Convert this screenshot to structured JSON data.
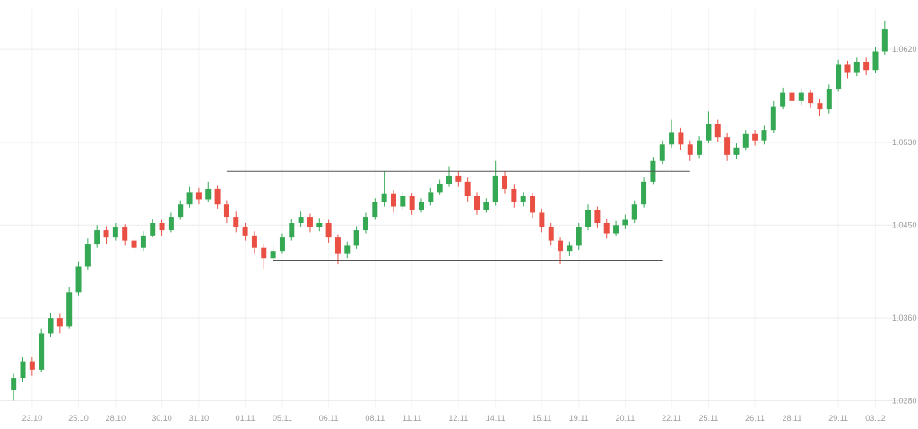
{
  "chart_data": {
    "type": "candlestick",
    "title": "",
    "xlabel": "",
    "ylabel": "",
    "grid": true,
    "ylim": [
      1.027,
      1.066
    ],
    "colors": {
      "background": "#ffffff",
      "up": "#34a853",
      "down": "#ea4f44",
      "grid_horizontal": "#ececec",
      "grid_vertical": "#f4f4f4",
      "axis_text": "#9b9b9b",
      "range_line": "#555555"
    },
    "y_axis": {
      "side": "right",
      "labels": [
        {
          "text": "1.0620",
          "price": 1.062
        },
        {
          "text": "1.0530",
          "price": 1.053
        },
        {
          "text": "1.0450",
          "price": 1.045
        },
        {
          "text": "1.0360",
          "price": 1.036
        },
        {
          "text": "1.0280",
          "price": 1.028
        }
      ]
    },
    "x_axis": {
      "labels": [
        {
          "text": "23.10",
          "index": 2
        },
        {
          "text": "25.10",
          "index": 7
        },
        {
          "text": "28.10",
          "index": 11
        },
        {
          "text": "30.10",
          "index": 16
        },
        {
          "text": "31.10",
          "index": 20
        },
        {
          "text": "01.11",
          "index": 25
        },
        {
          "text": "05.11",
          "index": 29
        },
        {
          "text": "06.11",
          "index": 34
        },
        {
          "text": "08.11",
          "index": 39
        },
        {
          "text": "11.11",
          "index": 43
        },
        {
          "text": "12.11",
          "index": 48
        },
        {
          "text": "14.11",
          "index": 52
        },
        {
          "text": "15.11",
          "index": 57
        },
        {
          "text": "19.11",
          "index": 61
        },
        {
          "text": "20.11",
          "index": 66
        },
        {
          "text": "22.11",
          "index": 71
        },
        {
          "text": "25.11",
          "index": 75
        },
        {
          "text": "26.11",
          "index": 80
        },
        {
          "text": "28.11",
          "index": 84
        },
        {
          "text": "29.11",
          "index": 89
        },
        {
          "text": "03.12",
          "index": 93
        }
      ]
    },
    "range_lines": [
      {
        "name": "resistance-line",
        "price": 1.0502,
        "from_index": 23,
        "to_index": 73
      },
      {
        "name": "support-line",
        "price": 1.0416,
        "from_index": 28,
        "to_index": 70
      }
    ],
    "candles": [
      [
        1.029,
        1.0306,
        1.028,
        1.0302
      ],
      [
        1.0302,
        1.0322,
        1.0298,
        1.0318
      ],
      [
        1.0318,
        1.0322,
        1.0304,
        1.031
      ],
      [
        1.031,
        1.035,
        1.0308,
        1.0345
      ],
      [
        1.0345,
        1.0365,
        1.0342,
        1.036
      ],
      [
        1.036,
        1.0364,
        1.0345,
        1.0352
      ],
      [
        1.0352,
        1.039,
        1.035,
        1.0385
      ],
      [
        1.0385,
        1.0415,
        1.0382,
        1.041
      ],
      [
        1.041,
        1.0437,
        1.0407,
        1.0432
      ],
      [
        1.0432,
        1.045,
        1.0428,
        1.0445
      ],
      [
        1.0445,
        1.0449,
        1.0432,
        1.0438
      ],
      [
        1.0438,
        1.0452,
        1.0435,
        1.0448
      ],
      [
        1.0448,
        1.0451,
        1.043,
        1.0435
      ],
      [
        1.0435,
        1.044,
        1.0422,
        1.0428
      ],
      [
        1.0428,
        1.0444,
        1.0425,
        1.044
      ],
      [
        1.044,
        1.0456,
        1.0438,
        1.0452
      ],
      [
        1.0452,
        1.0455,
        1.044,
        1.0445
      ],
      [
        1.0445,
        1.0462,
        1.0443,
        1.0458
      ],
      [
        1.0458,
        1.0474,
        1.0455,
        1.047
      ],
      [
        1.047,
        1.0487,
        1.0467,
        1.0482
      ],
      [
        1.0482,
        1.0486,
        1.047,
        1.0475
      ],
      [
        1.0475,
        1.0492,
        1.0472,
        1.0485
      ],
      [
        1.0485,
        1.0488,
        1.0466,
        1.047
      ],
      [
        1.047,
        1.0474,
        1.0452,
        1.0458
      ],
      [
        1.0458,
        1.0463,
        1.0443,
        1.0448
      ],
      [
        1.0448,
        1.0452,
        1.0435,
        1.044
      ],
      [
        1.044,
        1.0444,
        1.0422,
        1.0428
      ],
      [
        1.0428,
        1.0432,
        1.0408,
        1.0418
      ],
      [
        1.0418,
        1.043,
        1.0414,
        1.0425
      ],
      [
        1.0425,
        1.0442,
        1.0422,
        1.0438
      ],
      [
        1.0438,
        1.0456,
        1.0435,
        1.0452
      ],
      [
        1.0452,
        1.0463,
        1.0448,
        1.0458
      ],
      [
        1.0458,
        1.0461,
        1.0443,
        1.0448
      ],
      [
        1.0448,
        1.0457,
        1.0444,
        1.0452
      ],
      [
        1.0452,
        1.0455,
        1.0433,
        1.0438
      ],
      [
        1.0438,
        1.0441,
        1.0412,
        1.0422
      ],
      [
        1.0422,
        1.0434,
        1.0418,
        1.043
      ],
      [
        1.043,
        1.0449,
        1.0427,
        1.0445
      ],
      [
        1.0445,
        1.0462,
        1.0442,
        1.0458
      ],
      [
        1.0458,
        1.0476,
        1.0455,
        1.0472
      ],
      [
        1.0472,
        1.0502,
        1.0468,
        1.048
      ],
      [
        1.048,
        1.0484,
        1.0462,
        1.0468
      ],
      [
        1.0468,
        1.0482,
        1.0465,
        1.0478
      ],
      [
        1.0478,
        1.0481,
        1.046,
        1.0465
      ],
      [
        1.0465,
        1.0476,
        1.0462,
        1.0472
      ],
      [
        1.0472,
        1.0486,
        1.0469,
        1.0482
      ],
      [
        1.0482,
        1.0494,
        1.0479,
        1.049
      ],
      [
        1.049,
        1.0507,
        1.0487,
        1.0498
      ],
      [
        1.0498,
        1.0502,
        1.0487,
        1.0492
      ],
      [
        1.0492,
        1.0496,
        1.0473,
        1.0478
      ],
      [
        1.0478,
        1.0482,
        1.046,
        1.0465
      ],
      [
        1.0465,
        1.0476,
        1.0462,
        1.0472
      ],
      [
        1.0472,
        1.0512,
        1.0469,
        1.0498
      ],
      [
        1.0498,
        1.0502,
        1.048,
        1.0485
      ],
      [
        1.0485,
        1.0489,
        1.0467,
        1.0472
      ],
      [
        1.0472,
        1.0482,
        1.0468,
        1.0478
      ],
      [
        1.0478,
        1.0481,
        1.0457,
        1.0462
      ],
      [
        1.0462,
        1.0466,
        1.0443,
        1.0448
      ],
      [
        1.0448,
        1.0452,
        1.043,
        1.0435
      ],
      [
        1.0435,
        1.0438,
        1.0412,
        1.0425
      ],
      [
        1.0425,
        1.0434,
        1.042,
        1.043
      ],
      [
        1.043,
        1.0452,
        1.0426,
        1.0448
      ],
      [
        1.0448,
        1.047,
        1.0445,
        1.0465
      ],
      [
        1.0465,
        1.0468,
        1.0447,
        1.0452
      ],
      [
        1.0452,
        1.0456,
        1.0437,
        1.0442
      ],
      [
        1.0442,
        1.0454,
        1.0439,
        1.045
      ],
      [
        1.045,
        1.046,
        1.0446,
        1.0455
      ],
      [
        1.0455,
        1.0474,
        1.0452,
        1.047
      ],
      [
        1.047,
        1.0496,
        1.0467,
        1.0492
      ],
      [
        1.0492,
        1.0516,
        1.0489,
        1.0512
      ],
      [
        1.0512,
        1.0532,
        1.0509,
        1.0528
      ],
      [
        1.0528,
        1.0552,
        1.0525,
        1.054
      ],
      [
        1.054,
        1.0544,
        1.0523,
        1.0528
      ],
      [
        1.0528,
        1.0532,
        1.0512,
        1.0518
      ],
      [
        1.0518,
        1.0536,
        1.0515,
        1.0532
      ],
      [
        1.0532,
        1.056,
        1.0529,
        1.0548
      ],
      [
        1.0548,
        1.0552,
        1.053,
        1.0535
      ],
      [
        1.0535,
        1.0539,
        1.0512,
        1.0518
      ],
      [
        1.0518,
        1.0529,
        1.0514,
        1.0525
      ],
      [
        1.0525,
        1.0542,
        1.0522,
        1.0538
      ],
      [
        1.0538,
        1.0542,
        1.0527,
        1.0532
      ],
      [
        1.0532,
        1.0546,
        1.0528,
        1.0542
      ],
      [
        1.0542,
        1.057,
        1.0539,
        1.0565
      ],
      [
        1.0565,
        1.0583,
        1.0562,
        1.0578
      ],
      [
        1.0578,
        1.0582,
        1.0565,
        1.057
      ],
      [
        1.057,
        1.0582,
        1.0566,
        1.0578
      ],
      [
        1.0578,
        1.0581,
        1.0563,
        1.0568
      ],
      [
        1.0568,
        1.0572,
        1.0556,
        1.0562
      ],
      [
        1.0562,
        1.0586,
        1.0558,
        1.0582
      ],
      [
        1.0582,
        1.061,
        1.0579,
        1.0605
      ],
      [
        1.0605,
        1.0609,
        1.0592,
        1.0598
      ],
      [
        1.0598,
        1.0612,
        1.0594,
        1.0608
      ],
      [
        1.0608,
        1.0612,
        1.0595,
        1.06
      ],
      [
        1.06,
        1.0622,
        1.0597,
        1.0618
      ],
      [
        1.0618,
        1.0648,
        1.0615,
        1.064
      ]
    ]
  }
}
